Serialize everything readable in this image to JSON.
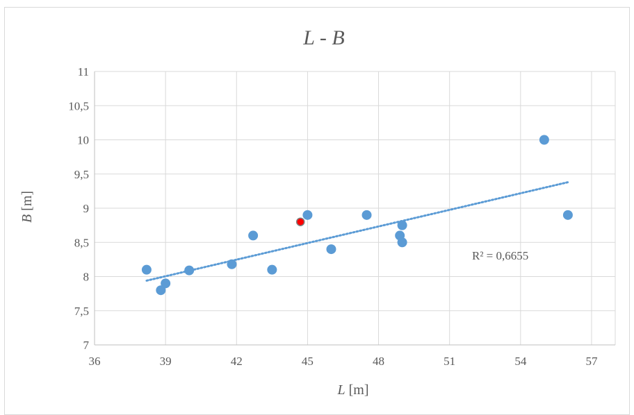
{
  "chart_data": {
    "type": "scatter",
    "title": {
      "italic": "L",
      "rest": " - B"
    },
    "title_text": "L - B",
    "xlabel": {
      "italic": "L",
      "rest": " [m]"
    },
    "ylabel": {
      "italic": "B",
      "rest": " [m]"
    },
    "xlim": [
      36,
      58
    ],
    "ylim": [
      7,
      11
    ],
    "x_ticks": [
      36,
      39,
      42,
      45,
      48,
      51,
      54,
      57
    ],
    "x_tick_labels": [
      "36",
      "39",
      "42",
      "45",
      "48",
      "51",
      "54",
      "57"
    ],
    "y_ticks": [
      7,
      7.5,
      8,
      8.5,
      9,
      9.5,
      10,
      10.5,
      11
    ],
    "y_tick_labels": [
      "7",
      "7,5",
      "8",
      "8,5",
      "9",
      "9,5",
      "10",
      "10,5",
      "11"
    ],
    "grid": true,
    "series": [
      {
        "color": "#5b9bd5",
        "points": [
          {
            "x": 38.2,
            "y": 8.1
          },
          {
            "x": 38.8,
            "y": 7.8
          },
          {
            "x": 39.0,
            "y": 7.9
          },
          {
            "x": 40.0,
            "y": 8.09
          },
          {
            "x": 41.8,
            "y": 8.18
          },
          {
            "x": 42.7,
            "y": 8.6
          },
          {
            "x": 43.5,
            "y": 8.1
          },
          {
            "x": 45.0,
            "y": 8.9
          },
          {
            "x": 46.0,
            "y": 8.4
          },
          {
            "x": 47.5,
            "y": 8.9
          },
          {
            "x": 48.9,
            "y": 8.6
          },
          {
            "x": 49.0,
            "y": 8.75
          },
          {
            "x": 49.0,
            "y": 8.5
          },
          {
            "x": 55.0,
            "y": 10.0
          },
          {
            "x": 56.0,
            "y": 8.9
          }
        ]
      },
      {
        "color": "#ff0000",
        "points": [
          {
            "x": 44.7,
            "y": 8.8
          }
        ]
      }
    ],
    "trendline": {
      "type": "linear",
      "style": "dotted",
      "color": "#5b9bd5",
      "x_start": 38.2,
      "x_end": 56.0,
      "y_start": 7.94,
      "y_end": 9.38,
      "r_squared_label": "R² = 0,6655"
    }
  }
}
